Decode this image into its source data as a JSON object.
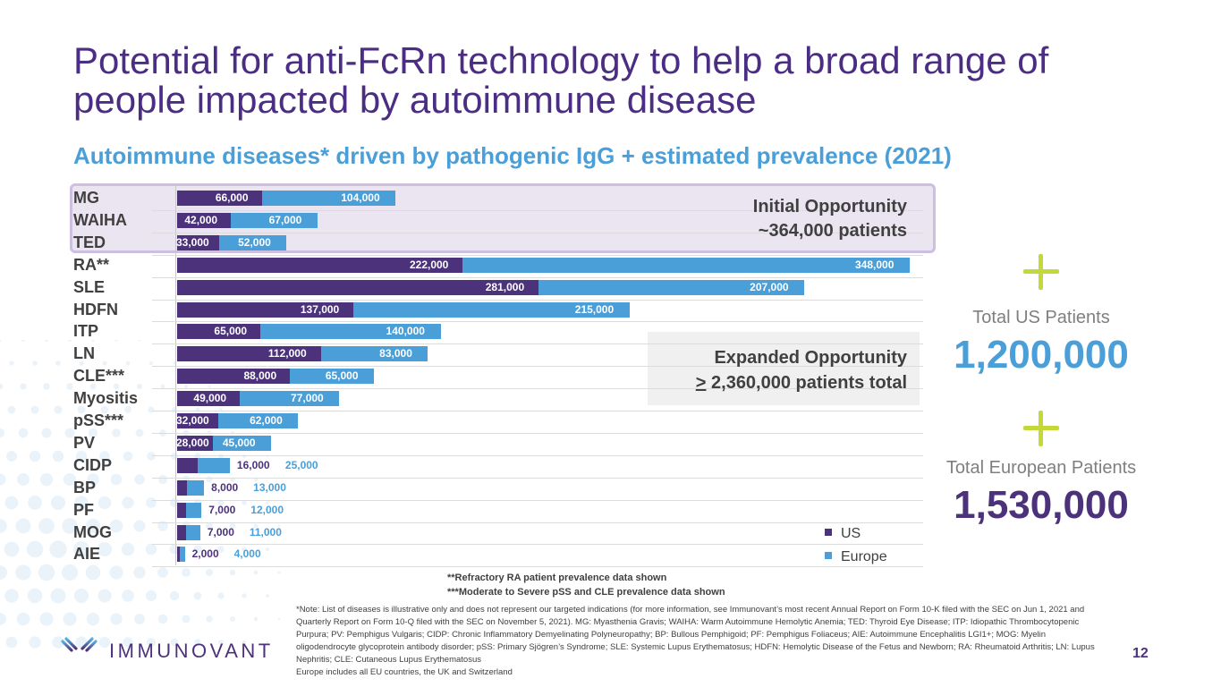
{
  "slide": {
    "title": "Potential for anti-FcRn technology to help a broad range of people impacted by autoimmune disease",
    "subtitle": "Autoimmune diseases* driven by pathogenic IgG + estimated prevalence (2021)",
    "page_number": "12"
  },
  "colors": {
    "us": "#4b327b",
    "europe": "#4a9fd8",
    "title": "#4b2e83",
    "plus_accent": "#c5d83a"
  },
  "callouts": {
    "initial": {
      "line1": "Initial Opportunity",
      "line2": "~364,000 patients"
    },
    "expanded": {
      "line1": "Expanded Opportunity",
      "ge_symbol": ">",
      "line2_rest": " 2,360,000 patients total"
    }
  },
  "totals": {
    "us_label": "Total US Patients",
    "us_value": "1,200,000",
    "europe_label": "Total European Patients",
    "europe_value": "1,530,000"
  },
  "legend": {
    "us": "US",
    "europe": "Europe"
  },
  "footnotes": {
    "ra": "**Refractory RA patient prevalence data shown",
    "pss_cle": "***Moderate to Severe pSS and CLE prevalence data shown",
    "note": "*Note: List of diseases is illustrative only and does not represent our targeted indications (for more information, see Immunovant’s most recent Annual Report on Form 10-K filed with the SEC on Jun 1, 2021 and Quarterly Report on Form 10-Q filed with the SEC on November 5, 2021). MG: Myasthenia Gravis; WAIHA: Warm Autoimmune Hemolytic Anemia; TED: Thyroid Eye Disease; ITP: Idiopathic Thrombocytopenic Purpura; PV: Pemphigus Vulgaris; CIDP: Chronic Inflammatory Demyelinating Polyneuropathy; BP: Bullous Pemphigoid; PF: Pemphigus Foliaceus; AIE: Autoimmune Encephalitis LGI1+; MOG: Myelin oligodendrocyte glycoprotein antibody disorder; pSS: Primary Sjögren’s Syndrome; SLE: Systemic Lupus Erythematosus; HDFN: Hemolytic Disease of the Fetus and Newborn; RA: Rheumatoid Arthritis; LN: Lupus Nephritis; CLE: Cutaneous Lupus Erythematosus",
    "europe_def": "Europe includes all EU countries, the UK and Switzerland"
  },
  "logo": {
    "text": "IMMUNOVANT",
    "icon": "antibody-icon"
  },
  "chart_data": {
    "type": "bar",
    "orientation": "horizontal",
    "stacked": true,
    "title": "Autoimmune diseases* driven by pathogenic IgG + estimated prevalence (2021)",
    "xlabel": "",
    "ylabel": "",
    "grid": true,
    "legend_position": "bottom-right",
    "xlim": [
      0,
      570000
    ],
    "categories": [
      "MG",
      "WAIHA",
      "TED",
      "RA**",
      "SLE",
      "HDFN",
      "ITP",
      "LN",
      "CLE***",
      "Myositis",
      "pSS***",
      "PV",
      "CIDP",
      "BP",
      "PF",
      "MOG",
      "AIE"
    ],
    "series": [
      {
        "name": "US",
        "values": [
          66000,
          42000,
          33000,
          222000,
          281000,
          137000,
          65000,
          112000,
          88000,
          49000,
          32000,
          28000,
          16000,
          8000,
          7000,
          7000,
          2000
        ]
      },
      {
        "name": "Europe",
        "values": [
          104000,
          67000,
          52000,
          348000,
          207000,
          215000,
          140000,
          83000,
          65000,
          77000,
          62000,
          45000,
          25000,
          13000,
          12000,
          11000,
          4000
        ]
      }
    ],
    "data_labels": {
      "us": [
        "66,000",
        "42,000",
        "33,000",
        "222,000",
        "281,000",
        "137,000",
        "65,000",
        "112,000",
        "88,000",
        "49,000",
        "32,000",
        "28,000",
        "16,000",
        "8,000",
        "7,000",
        "7,000",
        "2,000"
      ],
      "europe": [
        "104,000",
        "67,000",
        "52,000",
        "348,000",
        "207,000",
        "215,000",
        "140,000",
        "83,000",
        "65,000",
        "77,000",
        "62,000",
        "45,000",
        "25,000",
        "13,000",
        "12,000",
        "11,000",
        "4,000"
      ]
    },
    "highlight_groups": [
      {
        "name": "Initial Opportunity",
        "categories": [
          "MG",
          "WAIHA",
          "TED"
        ],
        "total_text": "~364,000 patients"
      },
      {
        "name": "Expanded Opportunity",
        "total_text": "> 2,360,000 patients total"
      }
    ]
  }
}
